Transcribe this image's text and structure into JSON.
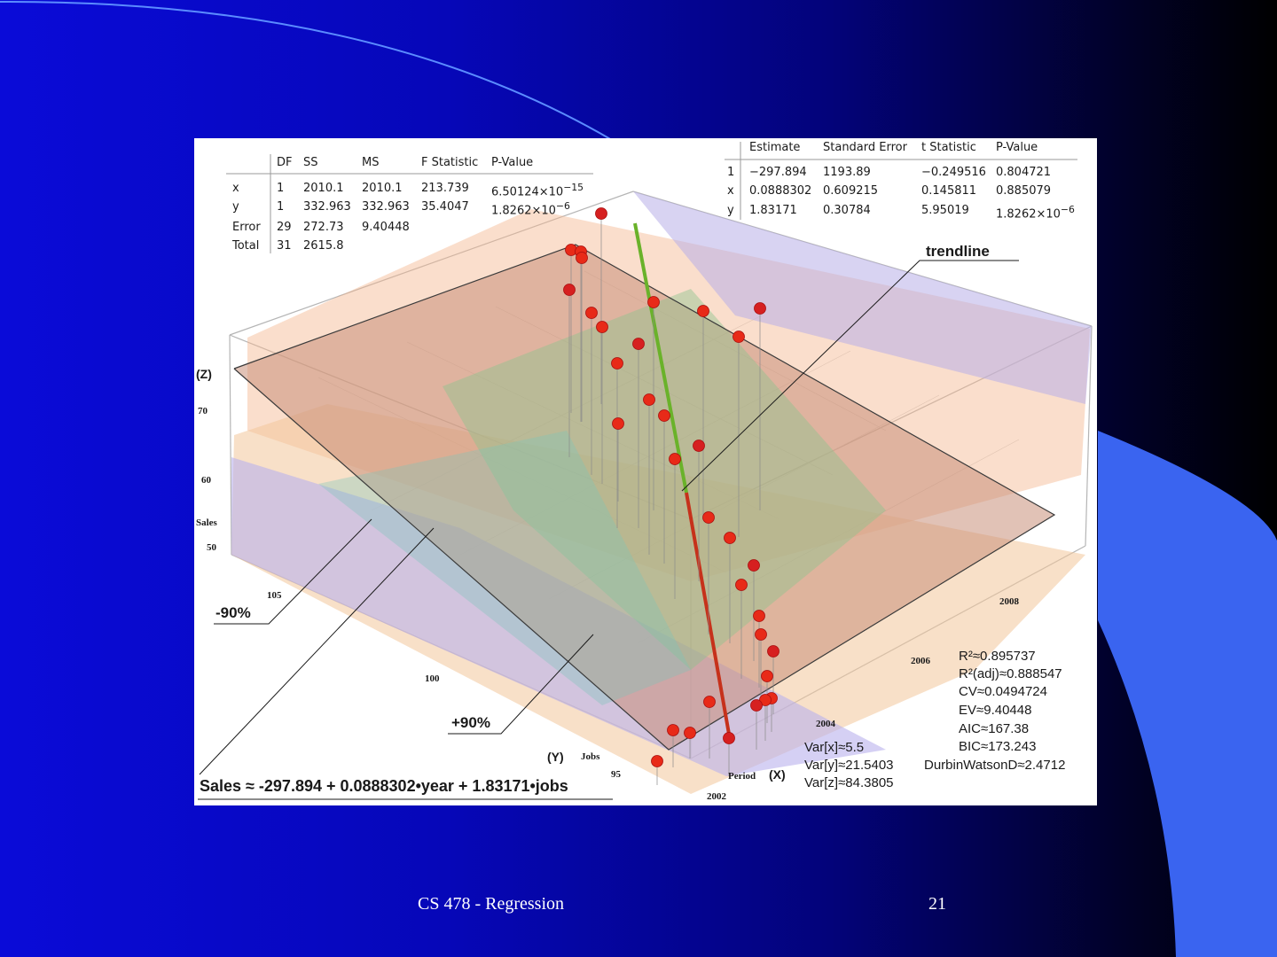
{
  "slide": {
    "footer_title": "CS 478 - Regression",
    "page_number": "21",
    "colors": {
      "background_start": "#0a0bd8",
      "background_end": "#000000",
      "swoosh": "#3a64f0"
    }
  },
  "figure": {
    "anova_table": {
      "headers": [
        "",
        "DF",
        "SS",
        "MS",
        "F Statistic",
        "P-Value"
      ],
      "rows": [
        {
          "name": "x",
          "df": "1",
          "ss": "2010.1",
          "ms": "2010.1",
          "f": "213.739",
          "p": "6.50124×10",
          "p_exp": "−15"
        },
        {
          "name": "y",
          "df": "1",
          "ss": "332.963",
          "ms": "332.963",
          "f": "35.4047",
          "p": "1.8262×10",
          "p_exp": "−6"
        },
        {
          "name": "Error",
          "df": "29",
          "ss": "272.73",
          "ms": "9.40448",
          "f": "",
          "p": "",
          "p_exp": ""
        },
        {
          "name": "Total",
          "df": "31",
          "ss": "2615.8",
          "ms": "",
          "f": "",
          "p": "",
          "p_exp": ""
        }
      ]
    },
    "parameter_table": {
      "headers": [
        "",
        "Estimate",
        "Standard Error",
        "t Statistic",
        "P-Value"
      ],
      "rows": [
        {
          "name": "1",
          "estimate": "−297.894",
          "se": "1193.89",
          "t": "−0.249516",
          "p": "0.804721",
          "p_exp": ""
        },
        {
          "name": "x",
          "estimate": "0.0888302",
          "se": "0.609215",
          "t": "0.145811",
          "p": "0.885079",
          "p_exp": ""
        },
        {
          "name": "y",
          "estimate": "1.83171",
          "se": "0.30784",
          "t": "5.95019",
          "p": "1.8262×10",
          "p_exp": "−6"
        }
      ]
    },
    "annotations": {
      "trendline": "trendline",
      "minus90": "-90%",
      "plus90": "+90%",
      "equation": "Sales ≈ -297.894 + 0.0888302•year + 1.83171•jobs"
    },
    "axes": {
      "z_label": "(Z)",
      "z_name": "Sales",
      "z_ticks": [
        "70",
        "60",
        "50"
      ],
      "y_label": "(Y)",
      "y_name": "Jobs",
      "y_ticks": [
        "105",
        "100",
        "95"
      ],
      "x_label": "(X)",
      "x_name": "Period",
      "x_ticks": [
        "2002",
        "2004",
        "2006",
        "2008"
      ]
    },
    "variances": [
      "Var[x]≈5.5",
      "Var[y]≈21.5403",
      "Var[z]≈84.3805"
    ],
    "fit_stats": [
      "R²≈0.895737",
      "R²(adj)≈0.888547",
      "CV≈0.0494724",
      "EV≈9.40448",
      "AIC≈167.38",
      "BIC≈173.243",
      "DurbinWatsonD≈2.4712"
    ],
    "icons": {
      "data_point": "red-sphere-marker"
    }
  }
}
